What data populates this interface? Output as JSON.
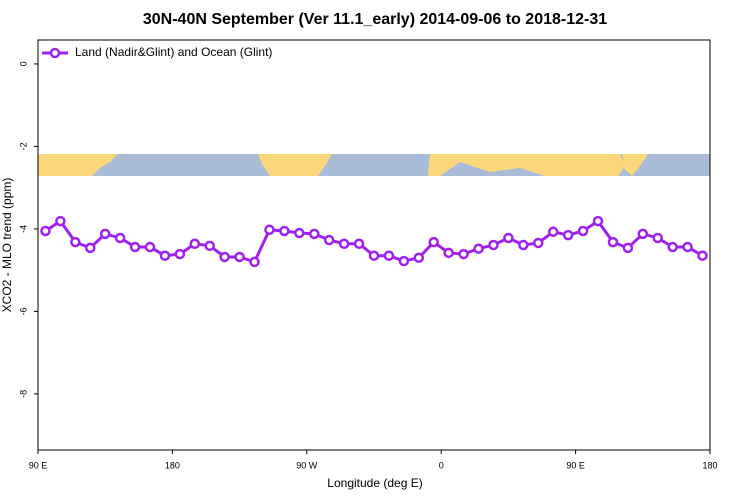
{
  "chart_data": {
    "type": "line",
    "title": "30N-40N September (Ver 11.1_early)   2014-09-06 to 2018-12-31",
    "x_label": "Longitude (deg E)",
    "y_label": "XCO2 - MLO trend (ppm)",
    "x": [
      95,
      105,
      115,
      125,
      135,
      145,
      155,
      165,
      175,
      185,
      195,
      205,
      215,
      225,
      235,
      245,
      255,
      265,
      275,
      285,
      295,
      305,
      315,
      325,
      335,
      345,
      355,
      365,
      375,
      385,
      395,
      405,
      415,
      425,
      435,
      445,
      455,
      465,
      475,
      485,
      495,
      505,
      515,
      525,
      535
    ],
    "series": [
      {
        "name": "Land (Nadir&Glint) and Ocean (Glint)",
        "color": "#a020f0",
        "values": [
          -4.05,
          -3.81,
          -4.32,
          -4.46,
          -4.12,
          -4.22,
          -4.44,
          -4.44,
          -4.65,
          -4.61,
          -4.36,
          -4.41,
          -4.68,
          -4.68,
          -4.8,
          -4.02,
          -4.05,
          -4.1,
          -4.12,
          -4.27,
          -4.36,
          -4.36,
          -4.65,
          -4.65,
          -4.78,
          -4.7,
          -4.32,
          -4.58,
          -4.61,
          -4.48,
          -4.39,
          -4.22,
          -4.39,
          -4.34,
          -4.07,
          -4.15,
          -4.05,
          -3.81,
          -4.32,
          -4.46,
          -4.12,
          -4.22,
          -4.44,
          -4.44,
          -4.65
        ]
      }
    ],
    "xlim": [
      90,
      540
    ],
    "xticks": [
      {
        "value": 90,
        "label": "90 E"
      },
      180,
      {
        "value": 270,
        "label": "90 W"
      },
      {
        "value": 360,
        "label": "0"
      },
      {
        "value": 450,
        "label": "90 E"
      },
      {
        "value": 540,
        "label": "180"
      }
    ],
    "ylim": [
      -9.36,
      0.58
    ],
    "yticks": [
      0,
      -2,
      -4,
      -6,
      -8
    ],
    "legend": "top-left"
  }
}
